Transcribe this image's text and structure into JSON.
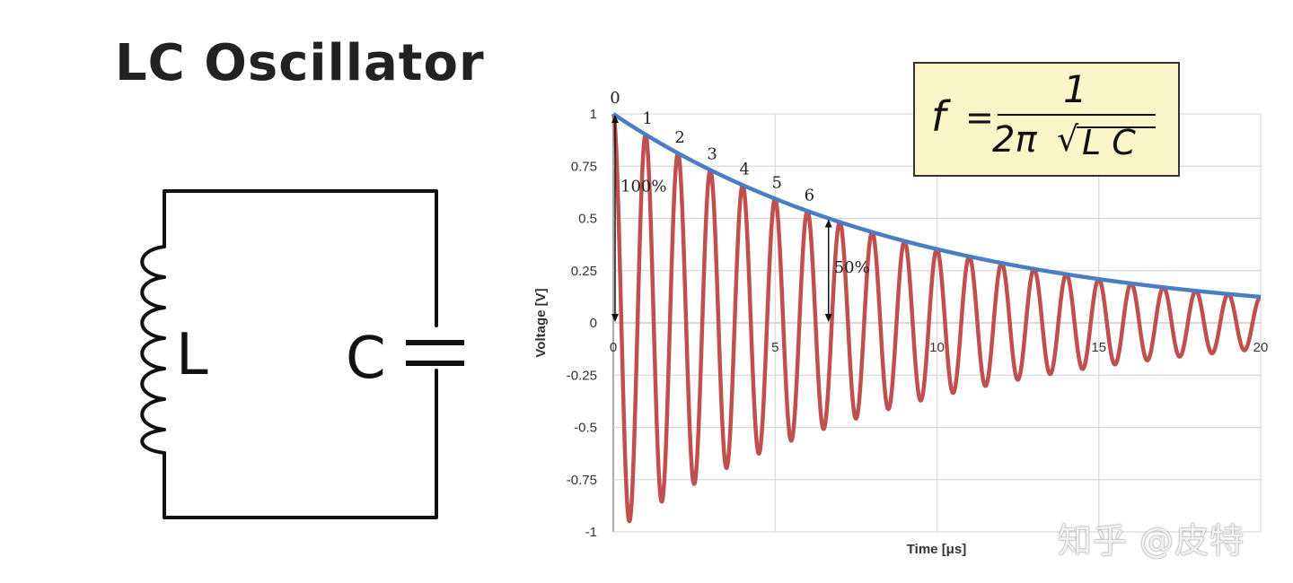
{
  "title": "LC Oscillator",
  "circuit": {
    "inductor_label": "L",
    "capacitor_label": "C"
  },
  "formula": {
    "lhs": "f",
    "equals": "=",
    "numerator": "1",
    "denominator_prefix": "2π",
    "radical": "√",
    "radicand": "L C"
  },
  "watermark": "知乎 @皮特",
  "colors": {
    "envelope": "#4a7ec4",
    "signal": "#c0504d",
    "formula_bg": "#fbf6c9",
    "grid": "#d9d9d9"
  },
  "chart_data": {
    "type": "line",
    "xlabel": "Time [μs]",
    "ylabel": "Voltage [V]",
    "xlim": [
      0,
      20
    ],
    "ylim": [
      -1,
      1
    ],
    "x_ticks": [
      0,
      5,
      10,
      15,
      20
    ],
    "y_ticks": [
      1,
      0.75,
      0.5,
      0.25,
      0,
      -0.25,
      -0.5,
      -0.75,
      -1
    ],
    "y_tick_labels": [
      "1",
      "0.75",
      "0.5",
      "0.25",
      "0",
      "-0.25",
      "-0.5",
      "-0.75",
      "-1"
    ],
    "grid": true,
    "series": [
      {
        "kind": "damped-cosine",
        "amplitude": 1,
        "period_us": 1,
        "time_constant_us": 9.6,
        "color": "#c0504d"
      },
      {
        "kind": "decay-envelope",
        "amplitude": 1,
        "time_constant_us": 9.6,
        "color": "#4a7ec4"
      }
    ],
    "peak_labels": [
      {
        "text": "0",
        "x": 0
      },
      {
        "text": "1",
        "x": 1
      },
      {
        "text": "2",
        "x": 2
      },
      {
        "text": "3",
        "x": 3
      },
      {
        "text": "4",
        "x": 4
      },
      {
        "text": "5",
        "x": 5
      },
      {
        "text": "6",
        "x": 6
      }
    ],
    "annotations": [
      {
        "text": "100%",
        "x": 0,
        "y_from": 0,
        "y_to": 1
      },
      {
        "text": "50%",
        "x": 6.65,
        "y_from": 0,
        "y_to": 0.5
      }
    ]
  }
}
